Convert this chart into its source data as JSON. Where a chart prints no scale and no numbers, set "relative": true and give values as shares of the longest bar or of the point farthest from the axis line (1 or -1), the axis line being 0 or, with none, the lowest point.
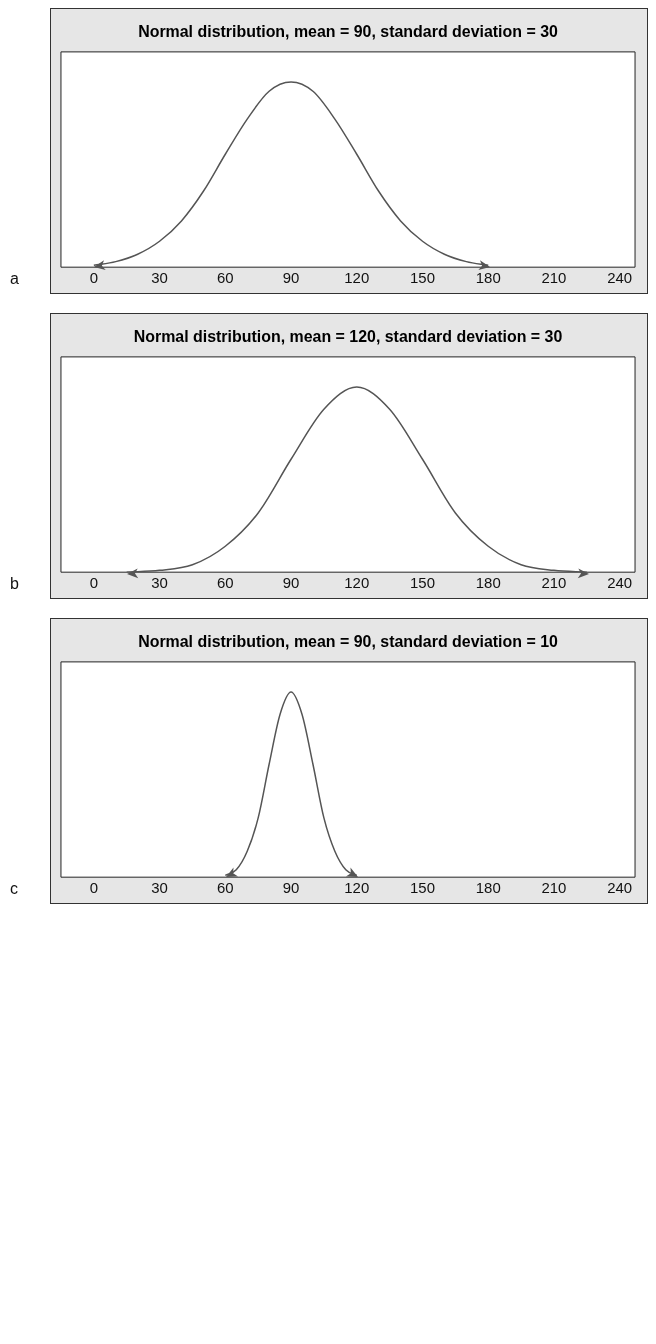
{
  "chart_data": [
    {
      "type": "line",
      "title": "Normal distribution, mean = 90, standard deviation = 30",
      "relative": true,
      "marker": "none",
      "legend": false,
      "annotations": [
        "a"
      ],
      "xlim": [
        -15,
        247
      ],
      "xticks": [
        0,
        30,
        60,
        90,
        120,
        150,
        180,
        210,
        240
      ],
      "series": [
        {
          "color": "#555555",
          "x": [
            0,
            10,
            20,
            30,
            40,
            50,
            60,
            70,
            80,
            90,
            100,
            110,
            120,
            130,
            140,
            150,
            160,
            170,
            180
          ],
          "values": [
            0.01,
            0.03,
            0.07,
            0.14,
            0.25,
            0.41,
            0.61,
            0.8,
            0.95,
            1,
            0.95,
            0.8,
            0.61,
            0.41,
            0.25,
            0.14,
            0.07,
            0.03,
            0.01
          ]
        }
      ]
    },
    {
      "type": "line",
      "title": "Normal distribution, mean = 120, standard deviation = 30",
      "relative": true,
      "marker": "none",
      "legend": false,
      "annotations": [
        "b"
      ],
      "xlim": [
        -15,
        247
      ],
      "xticks": [
        0,
        30,
        60,
        90,
        120,
        150,
        180,
        210,
        240
      ],
      "series": [
        {
          "color": "#555555",
          "x": [
            15,
            30,
            45,
            60,
            75,
            90,
            105,
            120,
            135,
            150,
            165,
            180,
            195,
            210,
            225
          ],
          "values": [
            0,
            0.01,
            0.04,
            0.14,
            0.32,
            0.61,
            0.88,
            1,
            0.88,
            0.61,
            0.32,
            0.14,
            0.04,
            0.01,
            0
          ]
        }
      ]
    },
    {
      "type": "line",
      "title": "Normal distribution, mean = 90, standard deviation = 10",
      "relative": true,
      "marker": "none",
      "legend": false,
      "annotations": [
        "c"
      ],
      "xlim": [
        -15,
        247
      ],
      "xticks": [
        0,
        30,
        60,
        90,
        120,
        150,
        180,
        210,
        240
      ],
      "series": [
        {
          "color": "#555555",
          "x": [
            60,
            65,
            70,
            75,
            80,
            85,
            90,
            95,
            100,
            105,
            110,
            115,
            120
          ],
          "values": [
            0.01,
            0.04,
            0.14,
            0.32,
            0.61,
            0.88,
            1,
            0.88,
            0.61,
            0.32,
            0.14,
            0.04,
            0.01
          ]
        }
      ]
    }
  ]
}
